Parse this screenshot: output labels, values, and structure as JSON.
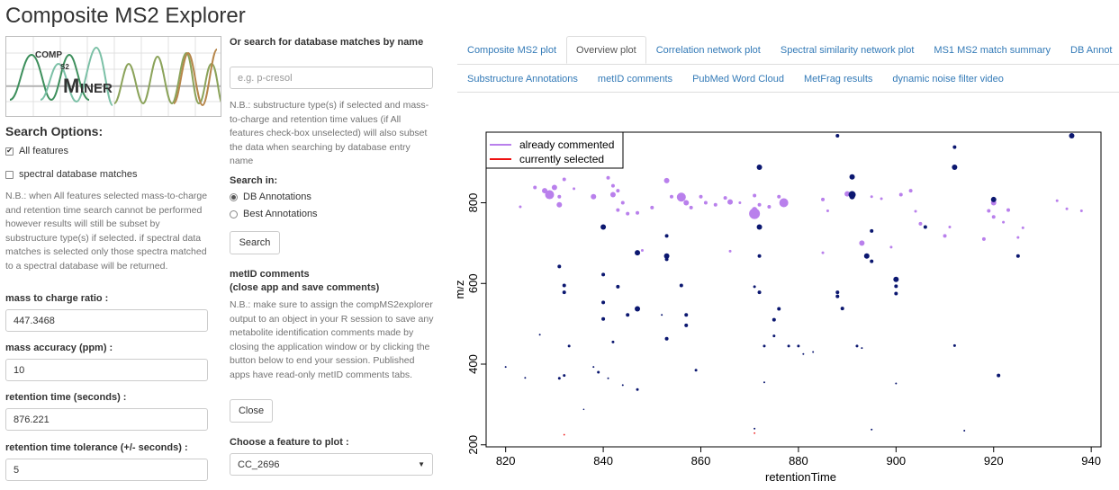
{
  "app": {
    "title": "Composite MS2 Explorer"
  },
  "logo": {
    "text_top": "COMP",
    "text_s2": "S2",
    "text_bottom": "INER"
  },
  "search_options": {
    "title": "Search Options:",
    "all_features": {
      "label": "All features",
      "checked": true
    },
    "spectral_db": {
      "label": "spectral database matches",
      "checked": false
    },
    "note": "N.B.: when All features selected mass-to-charge and retention time search cannot be performed however results will still be subset by substructure type(s) if selected. if spectral data matches is selected only those spectra matched to a spectral database will be returned."
  },
  "fields": {
    "mz": {
      "label": "mass to charge ratio :",
      "value": "447.3468"
    },
    "ppm": {
      "label": "mass accuracy (ppm) :",
      "value": "10"
    },
    "rt": {
      "label": "retention time (seconds) :",
      "value": "876.221"
    },
    "rt_tol": {
      "label": "retention time tolerance (+/- seconds) :",
      "value": "5"
    }
  },
  "db_search": {
    "title": "Or search for database matches by name",
    "placeholder": "e.g. p-cresol",
    "note": "N.B.: substructure type(s) if selected and mass-to-charge and retention time values (if All features check-box unselected) will also subset the data when searching by database entry name",
    "search_in_label": "Search in:",
    "options": [
      {
        "label": "DB Annotations",
        "selected": true
      },
      {
        "label": "Best Annotations",
        "selected": false
      }
    ],
    "search_button": "Search"
  },
  "metid": {
    "title": "metID comments",
    "subtitle": "(close app and save comments)",
    "note": "N.B.: make sure to assign the compMS2explorer output to an object in your R session to save any metabolite identification comments made by closing the application window or by clicking the button below to end your session. Published apps have read-only metID comments tabs.",
    "close_button": "Close"
  },
  "feature_select": {
    "label": "Choose a feature to plot :",
    "value": "CC_2696"
  },
  "tabs_row1": [
    {
      "label": "Composite MS2 plot",
      "active": false
    },
    {
      "label": "Overview plot",
      "active": true
    },
    {
      "label": "Correlation network plot",
      "active": false
    },
    {
      "label": "Spectral similarity network plot",
      "active": false
    },
    {
      "label": "MS1 MS2 match summary",
      "active": false
    },
    {
      "label": "DB Annot",
      "active": false
    }
  ],
  "tabs_row2": [
    {
      "label": "Substructure Annotations"
    },
    {
      "label": "metID comments"
    },
    {
      "label": "PubMed Word Cloud"
    },
    {
      "label": "MetFrag results"
    },
    {
      "label": "dynamic noise filter video"
    }
  ],
  "colors": {
    "commented": "#b980ec",
    "selected": "#ee1111",
    "feature": "#0b1770",
    "link": "#337ab7"
  },
  "chart_data": {
    "type": "scatter",
    "xlabel": "retentionTime",
    "ylabel": "m/z",
    "xlim": [
      816,
      942
    ],
    "ylim": [
      195,
      975
    ],
    "xticks": [
      820,
      840,
      860,
      880,
      900,
      920,
      940
    ],
    "yticks": [
      200,
      400,
      600,
      800
    ],
    "grid": false,
    "legend": {
      "placement": "top-left",
      "entries": [
        {
          "name": "already commented",
          "color": "#b980ec"
        },
        {
          "name": "currently selected",
          "color": "#ee1111"
        }
      ]
    },
    "series": [
      {
        "name": "already commented",
        "points": [
          [
            823,
            790,
            1.5
          ],
          [
            826,
            838,
            2
          ],
          [
            828,
            830,
            3
          ],
          [
            829,
            820,
            5
          ],
          [
            830,
            838,
            3
          ],
          [
            831,
            795,
            3
          ],
          [
            832,
            858,
            2
          ],
          [
            831,
            815,
            2
          ],
          [
            834,
            835,
            1.5
          ],
          [
            838,
            815,
            3
          ],
          [
            842,
            820,
            3
          ],
          [
            841,
            862,
            2
          ],
          [
            842,
            842,
            2
          ],
          [
            843,
            830,
            2
          ],
          [
            844,
            800,
            2
          ],
          [
            843,
            782,
            2
          ],
          [
            845,
            773,
            2
          ],
          [
            847,
            775,
            2
          ],
          [
            850,
            788,
            2
          ],
          [
            853,
            855,
            3
          ],
          [
            854,
            815,
            2
          ],
          [
            856,
            814,
            5
          ],
          [
            857,
            800,
            3
          ],
          [
            858,
            788,
            2
          ],
          [
            860,
            815,
            2
          ],
          [
            861,
            800,
            2
          ],
          [
            863,
            795,
            2
          ],
          [
            865,
            812,
            2
          ],
          [
            866,
            802,
            3
          ],
          [
            868,
            800,
            1.5
          ],
          [
            871,
            818,
            2
          ],
          [
            871,
            783,
            3
          ],
          [
            871,
            773,
            6
          ],
          [
            872,
            795,
            2
          ],
          [
            874,
            790,
            2
          ],
          [
            876,
            815,
            2
          ],
          [
            877,
            800,
            5
          ],
          [
            885,
            808,
            2
          ],
          [
            886,
            780,
            1.5
          ],
          [
            890,
            822,
            3
          ],
          [
            893,
            700,
            3
          ],
          [
            895,
            815,
            1.5
          ],
          [
            897,
            810,
            1.5
          ],
          [
            899,
            690,
            1.5
          ],
          [
            901,
            820,
            2
          ],
          [
            903,
            830,
            2
          ],
          [
            904,
            779,
            1.5
          ],
          [
            905,
            748,
            2
          ],
          [
            910,
            718,
            2
          ],
          [
            911,
            740,
            1.5
          ],
          [
            918,
            710,
            2
          ],
          [
            919,
            780,
            2
          ],
          [
            920,
            800,
            3
          ],
          [
            920,
            765,
            2
          ],
          [
            922,
            752,
            1.5
          ],
          [
            923,
            782,
            2
          ],
          [
            925,
            714,
            1.5
          ],
          [
            926,
            738,
            1.5
          ],
          [
            933,
            805,
            1.5
          ],
          [
            935,
            785,
            1.5
          ],
          [
            938,
            780,
            1.5
          ],
          [
            866,
            680,
            1.5
          ],
          [
            848,
            682,
            1.5
          ],
          [
            885,
            676,
            1.5
          ]
        ]
      },
      {
        "name": "features",
        "points": [
          [
            836,
            288,
            0.8
          ],
          [
            831,
            642,
            2
          ],
          [
            832,
            595,
            2
          ],
          [
            832,
            578,
            2
          ],
          [
            833,
            445,
            1.5
          ],
          [
            831,
            365,
            1.5
          ],
          [
            832,
            372,
            1.5
          ],
          [
            820,
            393,
            1
          ],
          [
            824,
            366,
            1
          ],
          [
            827,
            473,
            1
          ],
          [
            838,
            393,
            1
          ],
          [
            839,
            380,
            1.5
          ],
          [
            840,
            740,
            3
          ],
          [
            840,
            622,
            2
          ],
          [
            840,
            553,
            2
          ],
          [
            840,
            512,
            2
          ],
          [
            842,
            455,
            1.5
          ],
          [
            841,
            365,
            1
          ],
          [
            843,
            592,
            2
          ],
          [
            844,
            348,
            1
          ],
          [
            845,
            522,
            2
          ],
          [
            847,
            676,
            3
          ],
          [
            847,
            537,
            3
          ],
          [
            847,
            337,
            1.5
          ],
          [
            852,
            522,
            1
          ],
          [
            853,
            718,
            2
          ],
          [
            853,
            668,
            3
          ],
          [
            853,
            660,
            2
          ],
          [
            853,
            463,
            2
          ],
          [
            856,
            595,
            2
          ],
          [
            857,
            522,
            2
          ],
          [
            857,
            496,
            2
          ],
          [
            859,
            385,
            1.5
          ],
          [
            871,
            592,
            1.5
          ],
          [
            872,
            578,
            2
          ],
          [
            872,
            888,
            3
          ],
          [
            872,
            740,
            3
          ],
          [
            872,
            668,
            2
          ],
          [
            873,
            445,
            1.5
          ],
          [
            873,
            355,
            1
          ],
          [
            875,
            510,
            2
          ],
          [
            875,
            470,
            1.5
          ],
          [
            876,
            537,
            2
          ],
          [
            878,
            445,
            1.5
          ],
          [
            880,
            445,
            1.5
          ],
          [
            881,
            425,
            1
          ],
          [
            888,
            966,
            2
          ],
          [
            888,
            578,
            2
          ],
          [
            888,
            568,
            2
          ],
          [
            889,
            538,
            2
          ],
          [
            891,
            864,
            3
          ],
          [
            891,
            820,
            4
          ],
          [
            891,
            815,
            3
          ],
          [
            892,
            445,
            1.5
          ],
          [
            893,
            440,
            1
          ],
          [
            894,
            668,
            3
          ],
          [
            895,
            655,
            2
          ],
          [
            895,
            730,
            2
          ],
          [
            900,
            610,
            3
          ],
          [
            900,
            593,
            2
          ],
          [
            900,
            575,
            2
          ],
          [
            900,
            352,
            1
          ],
          [
            906,
            740,
            2
          ],
          [
            912,
            938,
            2
          ],
          [
            912,
            888,
            3
          ],
          [
            912,
            446,
            1.5
          ],
          [
            920,
            808,
            3
          ],
          [
            921,
            372,
            2
          ],
          [
            925,
            668,
            2
          ],
          [
            936,
            966,
            3
          ],
          [
            871,
            240,
            1
          ],
          [
            883,
            430,
            1
          ],
          [
            895,
            238,
            1
          ],
          [
            914,
            235,
            1
          ]
        ]
      }
    ],
    "selected": [
      [
        832,
        225
      ],
      [
        871,
        229
      ]
    ]
  }
}
